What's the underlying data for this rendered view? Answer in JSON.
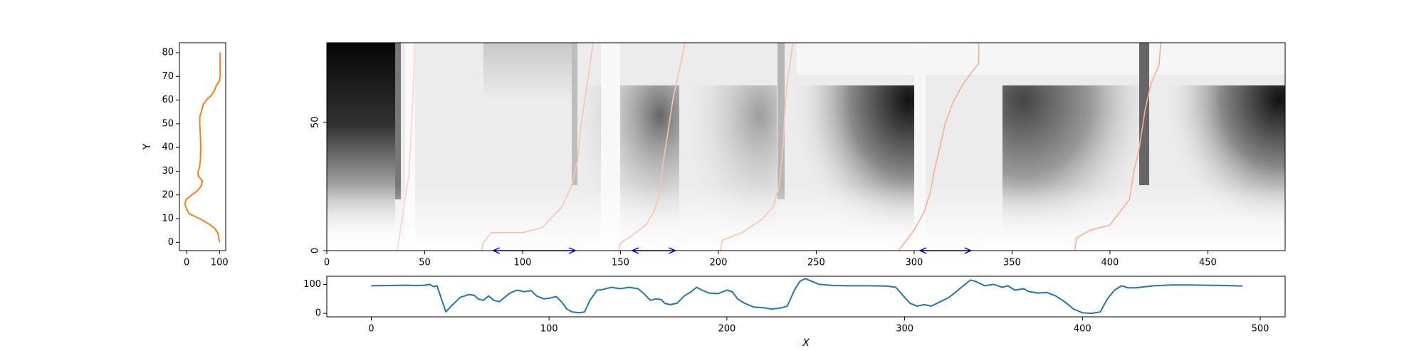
{
  "chart_data": [
    {
      "type": "line",
      "ylabel": "Y",
      "xlim": [
        -22,
        119
      ],
      "ylim": [
        -3.5,
        84.2
      ],
      "xticks": [
        0,
        100
      ],
      "yticks": [
        0,
        10,
        20,
        30,
        40,
        50,
        60,
        70,
        80
      ],
      "series": [
        {
          "color": "#ff7f0e",
          "x": [
            100,
            98,
            95,
            85,
            65,
            40,
            8,
            0,
            -5,
            -2,
            15,
            35,
            45,
            48,
            35,
            35,
            40,
            42,
            43,
            42,
            40,
            40,
            45,
            50,
            60,
            75,
            85,
            90,
            100,
            102,
            102,
            102,
            102,
            102
          ],
          "values": [
            0,
            2,
            4,
            6,
            8,
            10,
            12,
            14,
            16,
            18,
            20,
            22,
            24,
            26,
            28,
            30,
            32,
            35,
            40,
            45,
            50,
            53,
            55,
            58,
            60,
            62,
            64,
            66,
            68,
            70,
            72,
            75,
            78,
            80
          ]
        }
      ]
    },
    {
      "type": "image",
      "xlim": [
        0,
        489.5
      ],
      "ylim": [
        0,
        81
      ],
      "xticks": [
        0,
        50,
        100,
        150,
        200,
        250,
        300,
        350,
        400,
        450
      ],
      "yticks": [
        0,
        50
      ],
      "paths": [
        {
          "color": "#fdd5c4",
          "x": [
            36,
            38,
            40,
            42,
            43,
            44,
            45
          ],
          "values": [
            0,
            10,
            20,
            30,
            45,
            60,
            81
          ]
        },
        {
          "color": "#fcc2ab",
          "x": [
            79,
            80,
            84,
            100,
            110,
            115,
            120,
            125,
            128,
            130,
            132,
            134,
            136
          ],
          "values": [
            0,
            3,
            7,
            7,
            9,
            13,
            17,
            25,
            35,
            50,
            60,
            70,
            81
          ]
        },
        {
          "color": "#fcc2ab",
          "x": [
            149,
            150,
            156,
            163,
            167,
            170,
            172,
            175,
            177,
            180,
            183
          ],
          "values": [
            0,
            3,
            6,
            10,
            15,
            22,
            35,
            50,
            60,
            70,
            81
          ]
        },
        {
          "color": "#fcc2ab",
          "x": [
            201,
            202,
            212,
            222,
            228,
            231,
            233,
            234,
            235,
            237,
            238
          ],
          "values": [
            0,
            4,
            7,
            12,
            17,
            25,
            40,
            55,
            65,
            75,
            81
          ]
        },
        {
          "color": "#fcae91",
          "x": [
            292,
            295,
            300,
            305,
            308,
            310,
            313,
            316,
            320,
            325,
            330,
            333,
            333
          ],
          "values": [
            0,
            3,
            8,
            15,
            22,
            30,
            40,
            50,
            58,
            65,
            70,
            73,
            81
          ]
        },
        {
          "color": "#fcae91",
          "x": [
            382,
            383,
            390,
            400,
            405,
            410,
            412,
            415,
            418,
            421,
            425,
            426
          ],
          "values": [
            0,
            5,
            8,
            10,
            15,
            20,
            30,
            40,
            55,
            65,
            72,
            81
          ]
        }
      ],
      "arrows": {
        "color": "#0000ff",
        "y": 0,
        "segments": [
          [
            85,
            127
          ],
          [
            156,
            178
          ],
          [
            303,
            329
          ]
        ]
      }
    },
    {
      "type": "line",
      "xlabel": "X",
      "xlim": [
        -25,
        514
      ],
      "ylim": [
        -12,
        128
      ],
      "xticks": [
        0,
        100,
        200,
        300,
        400,
        500
      ],
      "yticks": [
        0,
        100
      ],
      "series": [
        {
          "color": "#1f77b4",
          "x": [
            0,
            10,
            20,
            25,
            30,
            33,
            35,
            37,
            40,
            42,
            45,
            50,
            55,
            58,
            60,
            63,
            66,
            69,
            72,
            75,
            78,
            82,
            86,
            90,
            93,
            97,
            100,
            104,
            107,
            110,
            113,
            117,
            120,
            123,
            127,
            130,
            135,
            140,
            145,
            150,
            153,
            157,
            160,
            163,
            165,
            168,
            172,
            176,
            180,
            183,
            186,
            190,
            195,
            200,
            203,
            206,
            210,
            215,
            220,
            225,
            230,
            234,
            238,
            241,
            244,
            248,
            252,
            260,
            270,
            280,
            290,
            295,
            300,
            303,
            307,
            311,
            315,
            320,
            325,
            330,
            334,
            337,
            340,
            345,
            350,
            355,
            358,
            362,
            367,
            370,
            375,
            380,
            385,
            390,
            395,
            400,
            405,
            410,
            414,
            418,
            422,
            426,
            430,
            440,
            450,
            460,
            470,
            480,
            490
          ],
          "values": [
            95,
            96,
            97,
            96,
            97,
            100,
            92,
            95,
            40,
            5,
            25,
            55,
            65,
            62,
            50,
            45,
            60,
            45,
            40,
            55,
            70,
            80,
            75,
            78,
            60,
            50,
            52,
            58,
            40,
            15,
            5,
            2,
            5,
            45,
            80,
            82,
            90,
            85,
            90,
            85,
            70,
            45,
            50,
            48,
            35,
            30,
            35,
            60,
            75,
            90,
            80,
            70,
            68,
            80,
            75,
            50,
            35,
            22,
            20,
            15,
            18,
            25,
            80,
            110,
            120,
            110,
            100,
            96,
            95,
            95,
            94,
            90,
            55,
            35,
            25,
            30,
            25,
            40,
            55,
            80,
            100,
            115,
            110,
            95,
            100,
            90,
            95,
            80,
            85,
            75,
            70,
            72,
            60,
            40,
            15,
            2,
            0,
            5,
            50,
            80,
            95,
            88,
            88,
            95,
            98,
            98,
            97,
            96,
            94
          ]
        }
      ]
    }
  ]
}
